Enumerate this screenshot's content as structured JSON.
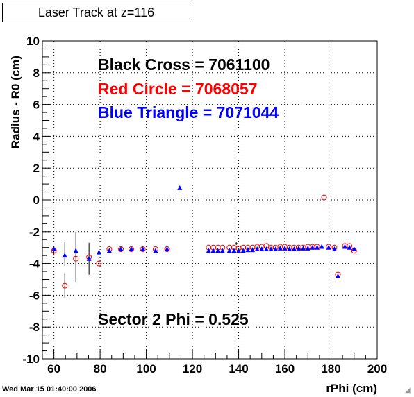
{
  "title": "Laser Track at z=116",
  "timestamp": "Wed Mar 15 01:40:00 2006",
  "chart_data": {
    "type": "scatter",
    "xlabel": "rPhi (cm)",
    "ylabel": "Radius - R0 (cm)",
    "xlim": [
      55,
      200
    ],
    "ylim": [
      -10,
      10
    ],
    "xticks": [
      60,
      80,
      100,
      120,
      140,
      160,
      180,
      200
    ],
    "yticks": [
      -10,
      -8,
      -6,
      -4,
      -2,
      0,
      2,
      4,
      6,
      8,
      10
    ],
    "grid": true,
    "annotations": [
      {
        "text": "Black Cross  = 7061100",
        "color": "#000000"
      },
      {
        "text": "Red Circle = 7068057",
        "color": "#ff0000"
      },
      {
        "text": "Blue Triangle = 7071044",
        "color": "#0000ff"
      },
      {
        "text": "Sector 2 Phi = 0.525",
        "color": "#000000"
      }
    ],
    "series": [
      {
        "name": "Black Cross",
        "marker": "cross",
        "color": "#000000",
        "points": [
          [
            139,
            -2.75
          ]
        ],
        "error_bars": [
          {
            "x": 60,
            "y": -3.2,
            "err": 0.3
          },
          {
            "x": 64.7,
            "y": -5.4,
            "err": 0.75
          },
          {
            "x": 64.7,
            "y": -3.4,
            "err": 0.75
          },
          {
            "x": 69.5,
            "y": -3.6,
            "err": 1.6
          },
          {
            "x": 75.2,
            "y": -3.7,
            "err": 1.0
          },
          {
            "x": 79.5,
            "y": -3.9,
            "err": 0.3
          }
        ]
      },
      {
        "name": "Red Circle",
        "marker": "circle",
        "color": "#ff0000",
        "points": [
          [
            60,
            -3.2
          ],
          [
            64.7,
            -5.4
          ],
          [
            69.5,
            -3.7
          ],
          [
            75.2,
            -3.6
          ],
          [
            79.5,
            -4.0
          ],
          [
            84,
            -3.1
          ],
          [
            89,
            -3.1
          ],
          [
            93.5,
            -3.1
          ],
          [
            98.5,
            -3.1
          ],
          [
            104,
            -3.1
          ],
          [
            109,
            -3.1
          ],
          [
            127,
            -3.0
          ],
          [
            129,
            -3.0
          ],
          [
            131,
            -3.0
          ],
          [
            133,
            -3.0
          ],
          [
            136,
            -3.0
          ],
          [
            138,
            -3.0
          ],
          [
            140,
            -3.05
          ],
          [
            142,
            -3.0
          ],
          [
            144,
            -3.0
          ],
          [
            146,
            -3.0
          ],
          [
            148,
            -2.95
          ],
          [
            150,
            -2.95
          ],
          [
            152,
            -2.9
          ],
          [
            154,
            -3.0
          ],
          [
            156,
            -3.0
          ],
          [
            158,
            -2.95
          ],
          [
            160,
            -2.95
          ],
          [
            162,
            -3.0
          ],
          [
            164,
            -3.0
          ],
          [
            166,
            -3.0
          ],
          [
            168,
            -3.0
          ],
          [
            170,
            -2.95
          ],
          [
            172,
            -2.95
          ],
          [
            174,
            -2.95
          ],
          [
            177,
            0.15
          ],
          [
            179,
            -2.95
          ],
          [
            181.5,
            -3.0
          ],
          [
            183,
            -4.7
          ],
          [
            186,
            -2.9
          ],
          [
            188,
            -2.9
          ],
          [
            190,
            -3.2
          ]
        ]
      },
      {
        "name": "Blue Triangle",
        "marker": "triangle",
        "color": "#0000ff",
        "points": [
          [
            60,
            -3.1
          ],
          [
            64.7,
            -3.5
          ],
          [
            69.5,
            -3.2
          ],
          [
            75.2,
            -3.7
          ],
          [
            79.5,
            -3.3
          ],
          [
            84,
            -3.2
          ],
          [
            89,
            -3.1
          ],
          [
            93.5,
            -3.1
          ],
          [
            98.5,
            -3.1
          ],
          [
            104,
            -3.2
          ],
          [
            109,
            -3.1
          ],
          [
            114.5,
            0.75
          ],
          [
            127,
            -3.2
          ],
          [
            129,
            -3.2
          ],
          [
            131,
            -3.2
          ],
          [
            133,
            -3.2
          ],
          [
            136,
            -3.2
          ],
          [
            138,
            -3.2
          ],
          [
            140,
            -3.2
          ],
          [
            142,
            -3.2
          ],
          [
            144,
            -3.15
          ],
          [
            146,
            -3.15
          ],
          [
            148,
            -3.1
          ],
          [
            150,
            -3.1
          ],
          [
            152,
            -3.1
          ],
          [
            154,
            -3.1
          ],
          [
            156,
            -3.1
          ],
          [
            158,
            -3.05
          ],
          [
            160,
            -3.05
          ],
          [
            162,
            -3.1
          ],
          [
            164,
            -3.1
          ],
          [
            166,
            -3.05
          ],
          [
            168,
            -3.05
          ],
          [
            170,
            -3.05
          ],
          [
            172,
            -3.0
          ],
          [
            174,
            -3.0
          ],
          [
            176,
            -2.95
          ],
          [
            179,
            -3.0
          ],
          [
            181.5,
            -3.1
          ],
          [
            183,
            -4.8
          ],
          [
            186,
            -2.95
          ],
          [
            188,
            -3.0
          ],
          [
            190,
            -3.1
          ]
        ]
      }
    ]
  }
}
